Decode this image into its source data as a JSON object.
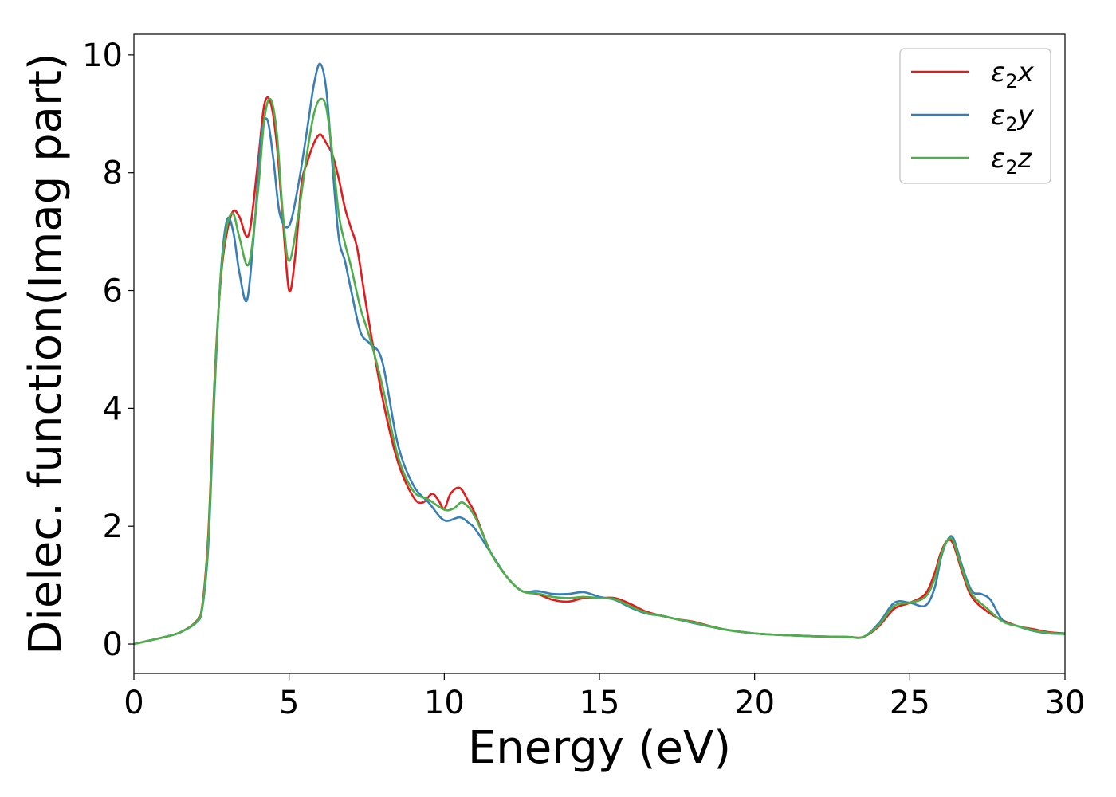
{
  "chart_data": {
    "type": "line",
    "xlabel": "Energy (eV)",
    "ylabel": "Dielec. function(Imag part)",
    "xlim": [
      0,
      30
    ],
    "ylim": [
      -0.5,
      10.35
    ],
    "xticks": [
      0,
      5,
      10,
      15,
      20,
      25,
      30
    ],
    "xtick_labels": [
      "0",
      "5",
      "10",
      "15",
      "20",
      "25",
      "30"
    ],
    "yticks": [
      0,
      2,
      4,
      6,
      8,
      10
    ],
    "ytick_labels": [
      "0",
      "2",
      "4",
      "6",
      "8",
      "10"
    ],
    "grid": false,
    "legend_position": "top-right",
    "series": [
      {
        "name": "ε2x",
        "legend": {
          "base": "ε",
          "sub": "2",
          "suffix": "x"
        },
        "color": "#e41a1c",
        "x": [
          0,
          1,
          1.5,
          2,
          2.2,
          2.4,
          2.6,
          2.8,
          3.0,
          3.2,
          3.4,
          3.7,
          4.0,
          4.2,
          4.4,
          4.6,
          4.8,
          5.0,
          5.2,
          5.4,
          5.6,
          5.8,
          6.0,
          6.2,
          6.4,
          6.6,
          6.8,
          7.0,
          7.2,
          7.5,
          8.0,
          8.5,
          9.0,
          9.3,
          9.6,
          9.8,
          10.0,
          10.2,
          10.5,
          10.8,
          11.0,
          11.5,
          12.0,
          12.5,
          13.0,
          13.5,
          14.0,
          14.5,
          15.0,
          15.5,
          16.0,
          16.5,
          17.0,
          17.5,
          18.0,
          19.0,
          20.0,
          21.0,
          22.0,
          23.0,
          23.5,
          24.0,
          24.5,
          25.0,
          25.5,
          25.8,
          26.0,
          26.2,
          26.4,
          26.7,
          27.0,
          27.5,
          28.0,
          28.5,
          29.0,
          29.5,
          30.0
        ],
        "y": [
          0,
          0.12,
          0.2,
          0.38,
          0.65,
          1.9,
          4.5,
          6.2,
          7.0,
          7.35,
          7.25,
          6.95,
          8.2,
          9.15,
          9.2,
          8.5,
          7.2,
          6.0,
          6.6,
          7.8,
          8.2,
          8.5,
          8.65,
          8.5,
          8.3,
          7.9,
          7.4,
          7.05,
          6.7,
          5.7,
          4.2,
          3.1,
          2.5,
          2.4,
          2.55,
          2.45,
          2.3,
          2.55,
          2.65,
          2.4,
          2.2,
          1.55,
          1.15,
          0.9,
          0.85,
          0.75,
          0.72,
          0.78,
          0.78,
          0.78,
          0.68,
          0.55,
          0.48,
          0.42,
          0.38,
          0.25,
          0.18,
          0.15,
          0.13,
          0.12,
          0.12,
          0.3,
          0.6,
          0.7,
          0.85,
          1.2,
          1.55,
          1.75,
          1.7,
          1.2,
          0.8,
          0.55,
          0.4,
          0.3,
          0.25,
          0.2,
          0.18
        ]
      },
      {
        "name": "ε2y",
        "legend": {
          "base": "ε",
          "sub": "2",
          "suffix": "y"
        },
        "color": "#377eb8",
        "x": [
          0,
          1,
          1.5,
          2,
          2.2,
          2.4,
          2.6,
          2.8,
          3.0,
          3.2,
          3.4,
          3.65,
          3.9,
          4.1,
          4.3,
          4.5,
          4.7,
          5.0,
          5.3,
          5.6,
          5.8,
          6.0,
          6.2,
          6.4,
          6.6,
          6.8,
          7.0,
          7.3,
          7.6,
          8.0,
          8.5,
          9.0,
          9.5,
          10.0,
          10.5,
          10.8,
          11.0,
          11.5,
          12.0,
          12.5,
          13.0,
          13.5,
          14.0,
          14.5,
          15.0,
          15.5,
          16.0,
          16.5,
          17.0,
          17.5,
          18.0,
          19.0,
          20.0,
          21.0,
          22.0,
          23.0,
          23.5,
          24.0,
          24.5,
          25.0,
          25.5,
          25.8,
          26.0,
          26.2,
          26.4,
          26.7,
          27.0,
          27.3,
          27.6,
          28.0,
          28.5,
          29.0,
          29.5,
          30.0
        ],
        "y": [
          0,
          0.12,
          0.2,
          0.36,
          0.6,
          1.7,
          4.3,
          6.3,
          7.2,
          7.0,
          6.3,
          5.85,
          7.2,
          8.6,
          8.9,
          8.2,
          7.3,
          7.1,
          7.8,
          8.8,
          9.5,
          9.85,
          9.4,
          8.1,
          6.9,
          6.5,
          6.0,
          5.3,
          5.1,
          4.8,
          3.4,
          2.7,
          2.4,
          2.1,
          2.15,
          2.05,
          1.95,
          1.55,
          1.15,
          0.9,
          0.9,
          0.85,
          0.85,
          0.88,
          0.8,
          0.75,
          0.62,
          0.52,
          0.48,
          0.42,
          0.36,
          0.25,
          0.18,
          0.15,
          0.13,
          0.12,
          0.12,
          0.35,
          0.7,
          0.7,
          0.65,
          0.95,
          1.45,
          1.75,
          1.8,
          1.3,
          0.9,
          0.85,
          0.75,
          0.4,
          0.3,
          0.22,
          0.18,
          0.17
        ]
      },
      {
        "name": "ε2z",
        "legend": {
          "base": "ε",
          "sub": "2",
          "suffix": "z"
        },
        "color": "#4daf4a",
        "x": [
          0,
          1,
          1.5,
          2,
          2.2,
          2.4,
          2.6,
          2.8,
          3.0,
          3.2,
          3.4,
          3.7,
          4.0,
          4.2,
          4.4,
          4.6,
          4.8,
          5.0,
          5.3,
          5.6,
          5.8,
          6.0,
          6.2,
          6.4,
          6.6,
          6.8,
          7.0,
          7.3,
          7.6,
          8.0,
          8.5,
          9.0,
          9.5,
          10.0,
          10.3,
          10.6,
          11.0,
          11.5,
          12.0,
          12.5,
          13.0,
          13.5,
          14.0,
          14.5,
          15.0,
          15.5,
          16.0,
          16.5,
          17.0,
          17.5,
          18.0,
          19.0,
          20.0,
          21.0,
          22.0,
          23.0,
          23.5,
          24.0,
          24.5,
          25.0,
          25.5,
          25.8,
          26.0,
          26.2,
          26.4,
          26.7,
          27.0,
          27.5,
          28.0,
          28.5,
          29.0,
          29.5,
          30.0
        ],
        "y": [
          0,
          0.12,
          0.2,
          0.37,
          0.62,
          1.8,
          4.4,
          6.25,
          7.1,
          7.3,
          6.9,
          6.45,
          7.7,
          8.9,
          9.25,
          8.7,
          7.3,
          6.5,
          7.3,
          8.4,
          9.0,
          9.25,
          9.1,
          8.3,
          7.3,
          6.8,
          6.4,
          5.7,
          5.2,
          4.4,
          3.2,
          2.6,
          2.45,
          2.28,
          2.3,
          2.4,
          2.15,
          1.55,
          1.15,
          0.9,
          0.86,
          0.8,
          0.78,
          0.8,
          0.78,
          0.76,
          0.64,
          0.53,
          0.48,
          0.42,
          0.37,
          0.25,
          0.18,
          0.15,
          0.13,
          0.12,
          0.12,
          0.32,
          0.65,
          0.7,
          0.8,
          1.1,
          1.5,
          1.75,
          1.75,
          1.25,
          0.85,
          0.6,
          0.38,
          0.3,
          0.23,
          0.19,
          0.17
        ]
      }
    ]
  }
}
